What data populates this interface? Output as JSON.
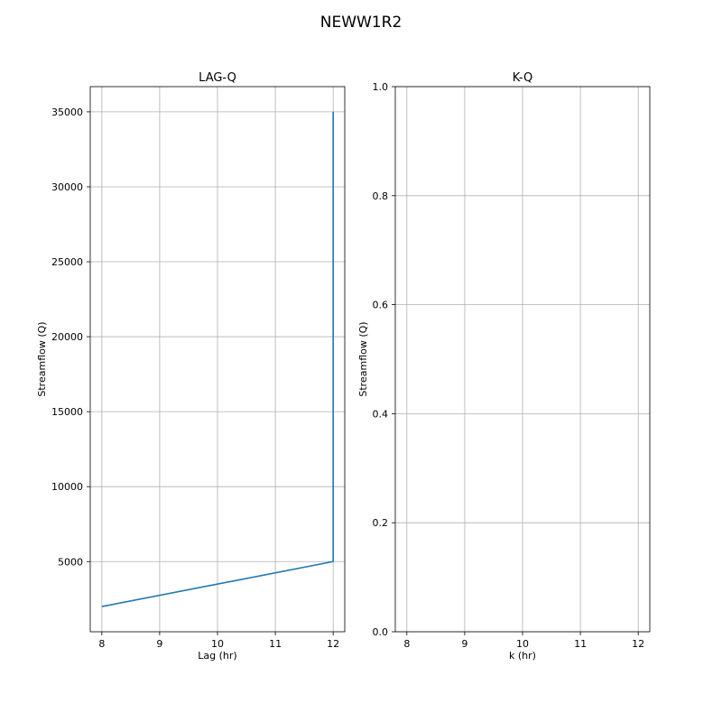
{
  "figure": {
    "suptitle": "NEWW1R2"
  },
  "colors": {
    "series": "#1f77b4",
    "grid": "#b0b0b0",
    "axes": "#000000"
  },
  "chart_data": [
    {
      "type": "line",
      "title": "LAG-Q",
      "xlabel": "Lag (hr)",
      "ylabel": "Streamflow (Q)",
      "xlim": [
        7.8,
        12.2
      ],
      "ylim": [
        320,
        36680
      ],
      "xticks": [
        8,
        9,
        10,
        11,
        12
      ],
      "yticks": [
        5000,
        10000,
        15000,
        20000,
        25000,
        30000,
        35000
      ],
      "grid": true,
      "series": [
        {
          "x": [
            8,
            12,
            12
          ],
          "y": [
            2000,
            5000,
            35000
          ]
        }
      ]
    },
    {
      "type": "line",
      "title": "K-Q",
      "xlabel": "k (hr)",
      "ylabel": "Streamflow (Q)",
      "xlim": [
        7.8,
        12.2
      ],
      "ylim": [
        0.0,
        1.0
      ],
      "xticks": [
        8,
        9,
        10,
        11,
        12
      ],
      "yticks": [
        "0.0",
        "0.2",
        "0.4",
        "0.6",
        "0.8",
        "1.0"
      ],
      "grid": true,
      "series": []
    }
  ]
}
